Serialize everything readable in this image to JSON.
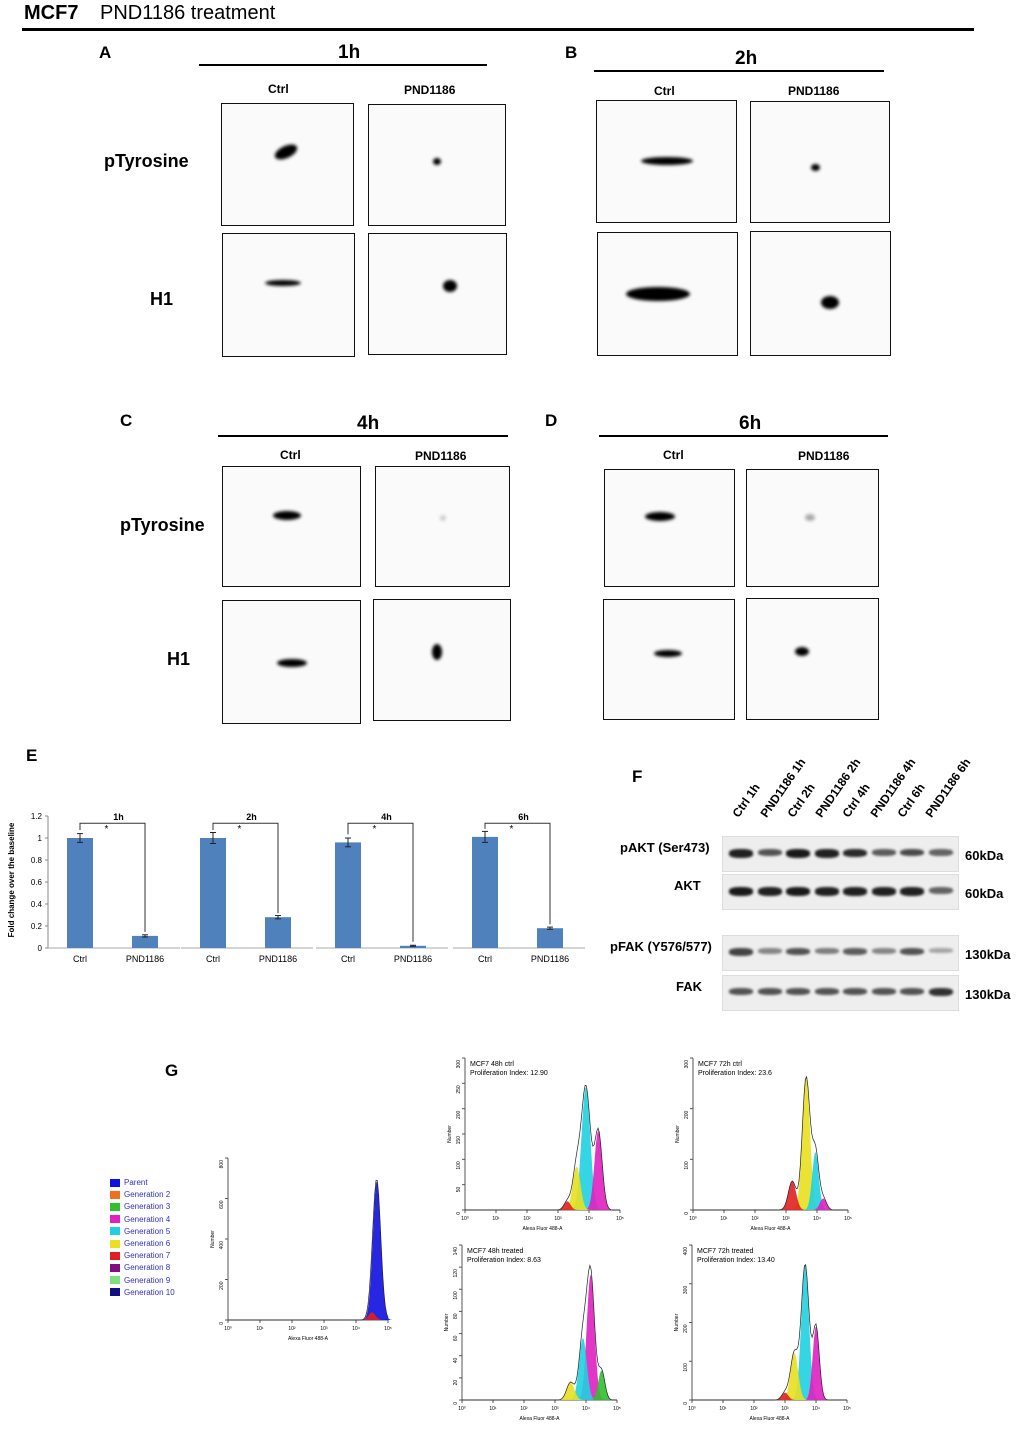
{
  "header": {
    "cell_line": "MCF7",
    "treatment": "PND1186 treatment"
  },
  "panels": {
    "A": {
      "letter": "A",
      "time": "1h"
    },
    "B": {
      "letter": "B",
      "time": "2h"
    },
    "C": {
      "letter": "C",
      "time": "4h"
    },
    "D": {
      "letter": "D",
      "time": "6h"
    },
    "E": {
      "letter": "E"
    },
    "F": {
      "letter": "F"
    },
    "G": {
      "letter": "G"
    }
  },
  "columns": {
    "ctrl": "Ctrl",
    "treated": "PND1186"
  },
  "rows": {
    "ptyr": "pTyrosine",
    "h1": "H1"
  },
  "chart_data": [
    {
      "type": "bar",
      "title": "1h",
      "categories": [
        "Ctrl",
        "PND1186"
      ],
      "values": [
        1.0,
        0.11
      ],
      "errors": [
        0.04,
        0.01
      ],
      "ylabel": "Fold change over the baseline",
      "ylim": [
        0,
        1.2
      ],
      "yticks": [
        0,
        0.2,
        0.4,
        0.6,
        0.8,
        1,
        1.2
      ],
      "significance": "*"
    },
    {
      "type": "bar",
      "title": "2h",
      "categories": [
        "Ctrl",
        "PND1186"
      ],
      "values": [
        1.0,
        0.28
      ],
      "errors": [
        0.05,
        0.015
      ],
      "ylim": [
        0,
        1.2
      ],
      "significance": "*"
    },
    {
      "type": "bar",
      "title": "4h",
      "categories": [
        "Ctrl",
        "PND1186"
      ],
      "values": [
        0.96,
        0.02
      ],
      "errors": [
        0.04,
        0.005
      ],
      "ylim": [
        0,
        1.2
      ],
      "significance": "*"
    },
    {
      "type": "bar",
      "title": "6h",
      "categories": [
        "Ctrl",
        "PND1186"
      ],
      "values": [
        1.01,
        0.18
      ],
      "errors": [
        0.05,
        0.01
      ],
      "ylim": [
        0,
        1.2
      ],
      "significance": "*"
    }
  ],
  "western": {
    "lanes": [
      "Ctrl 1h",
      "PND1186 1h",
      "Ctrl 2h",
      "PND1186 2h",
      "Ctrl 4h",
      "PND1186 4h",
      "Ctrl 6h",
      "PND1186 6h"
    ],
    "blots": [
      {
        "label": "pAKT (Ser473)",
        "kda": "60kDa",
        "intensity": [
          0.9,
          0.6,
          0.95,
          0.9,
          0.85,
          0.55,
          0.65,
          0.5
        ]
      },
      {
        "label": "AKT",
        "kda": "60kDa",
        "intensity": [
          0.95,
          0.9,
          0.95,
          0.9,
          0.9,
          0.9,
          0.9,
          0.5
        ]
      },
      {
        "label": "pFAK (Y576/577)",
        "kda": "130kDa",
        "intensity": [
          0.7,
          0.3,
          0.6,
          0.35,
          0.55,
          0.3,
          0.6,
          0.1
        ]
      },
      {
        "label": "FAK",
        "kda": "130kDa",
        "intensity": [
          0.6,
          0.6,
          0.6,
          0.6,
          0.6,
          0.6,
          0.6,
          0.8
        ]
      }
    ]
  },
  "flow": {
    "legend": [
      "Parent",
      "Generation 2",
      "Generation 3",
      "Generation 4",
      "Generation 5",
      "Generation 6",
      "Generation 7",
      "Generation 8",
      "Generation 9",
      "Generation 10"
    ],
    "legend_colors": [
      "#1010e0",
      "#f07020",
      "#30c030",
      "#e020c0",
      "#20d0e0",
      "#e8e020",
      "#e02020",
      "#801080",
      "#80e080",
      "#101080"
    ],
    "xlabel": "Alexa Fluor 488-A",
    "ylabel": "Number",
    "xticks": [
      "10⁰",
      "10¹",
      "10²",
      "10³",
      "10⁴",
      "10⁵"
    ],
    "plots": [
      {
        "id": "parent",
        "title": "",
        "index": "",
        "yticks": [
          "0",
          "200",
          "400",
          "600",
          "800"
        ]
      },
      {
        "id": "48c",
        "title": "MCF7 48h ctrl",
        "index": "Proliferation Index: 12.90",
        "yticks": [
          "0",
          "50",
          "100",
          "150",
          "200",
          "250",
          "300"
        ]
      },
      {
        "id": "72c",
        "title": "MCF7 72h ctrl",
        "index": "Proliferation Index: 23.6",
        "yticks": [
          "0",
          "100",
          "200",
          "300"
        ]
      },
      {
        "id": "48t",
        "title": "MCF7 48h treated",
        "index": "Proliferation Index: 8.63",
        "yticks": [
          "0",
          "20",
          "40",
          "60",
          "80",
          "100",
          "120",
          "140"
        ]
      },
      {
        "id": "72t",
        "title": "MCF7 72h treated",
        "index": "Proliferation Index: 13.40",
        "yticks": [
          "0",
          "100",
          "200",
          "300",
          "400"
        ]
      }
    ]
  }
}
